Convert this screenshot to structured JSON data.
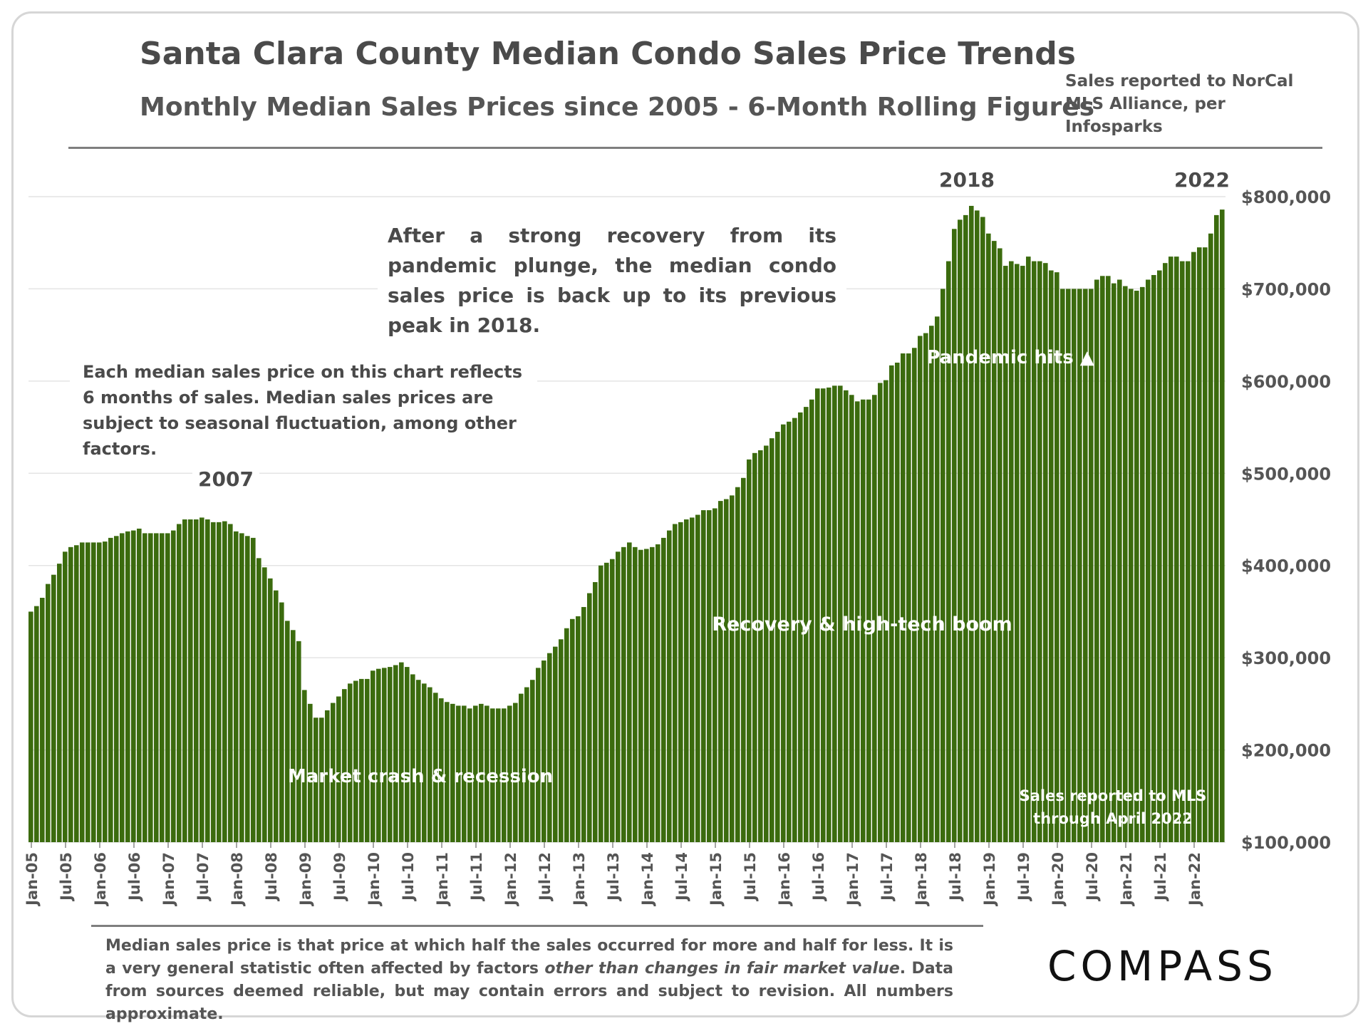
{
  "header": {
    "title": "Santa Clara County Median Condo Sales Price Trends",
    "subtitle": "Monthly Median Sales Prices since 2005 - 6-Month Rolling Figures",
    "source": "Sales reported to NorCal MLS Alliance, per Infosparks"
  },
  "annotations": {
    "main_note": "After a strong recovery from its pandemic plunge, the median condo sales price is back up to its previous peak in 2018.",
    "side_note": "Each median sales price on this chart reflects 6 months of sales. Median sales prices are subject to seasonal fluctuation, among other factors.",
    "year_2007": "2007",
    "year_2018": "2018",
    "year_2022": "2022",
    "crash": "Market crash & recession",
    "recovery": "Recovery & high-tech boom",
    "pandemic": "Pandemic hits ▲",
    "mls_note_line1": "Sales reported to MLS",
    "mls_note_line2": "through April 2022"
  },
  "footer": {
    "footnote_pre": "Median sales price is that price at which half the sales occurred for more and half for less. It is a very general statistic often affected by factors ",
    "footnote_em": "other than changes in fair market value",
    "footnote_post": ". Data from sources deemed reliable, but may contain errors and subject to revision. All numbers approximate.",
    "logo": "COMPASS"
  },
  "colors": {
    "bar": "#3b6b0e",
    "bar_edge": "#2e5409",
    "grid": "#e4e4e4"
  },
  "chart_data": {
    "type": "bar",
    "title": "Santa Clara County Median Condo Sales Price Trends",
    "xlabel": "",
    "ylabel": "",
    "ylim": [
      100000,
      800000
    ],
    "y_ticks": [
      100000,
      200000,
      300000,
      400000,
      500000,
      600000,
      700000,
      800000
    ],
    "y_tick_labels": [
      "$100,000",
      "$200,000",
      "$300,000",
      "$400,000",
      "$500,000",
      "$600,000",
      "$700,000",
      "$800,000"
    ],
    "x_tick_labels": [
      "Jan-05",
      "Jul-05",
      "Jan-06",
      "Jul-06",
      "Jan-07",
      "Jul-07",
      "Jan-08",
      "Jul-08",
      "Jan-09",
      "Jul-09",
      "Jan-10",
      "Jul-10",
      "Jan-11",
      "Jul-11",
      "Jan-12",
      "Jul-12",
      "Jan-13",
      "Jul-13",
      "Jan-14",
      "Jul-14",
      "Jan-15",
      "Jul-15",
      "Jan-16",
      "Jul-16",
      "Jan-17",
      "Jul-17",
      "Jan-18",
      "Jul-18",
      "Jan-19",
      "Jul-19",
      "Jan-20",
      "Jul-20",
      "Jan-21",
      "Jul-21",
      "Jan-22"
    ],
    "series": [
      {
        "name": "Median Condo Sales Price (6-month rolling)",
        "start": "Jan-05",
        "values": [
          350000,
          356000,
          365000,
          380000,
          390000,
          402000,
          415000,
          420000,
          422000,
          425000,
          425000,
          425000,
          425000,
          426000,
          430000,
          432000,
          435000,
          437000,
          438000,
          440000,
          435000,
          435000,
          435000,
          435000,
          435000,
          438000,
          445000,
          450000,
          450000,
          450000,
          452000,
          450000,
          447000,
          447000,
          448000,
          445000,
          437000,
          435000,
          432000,
          430000,
          408000,
          398000,
          386000,
          373000,
          360000,
          340000,
          330000,
          318000,
          265000,
          250000,
          235000,
          235000,
          243000,
          251000,
          258000,
          266000,
          272000,
          275000,
          277000,
          277000,
          286000,
          288000,
          289000,
          290000,
          292000,
          295000,
          290000,
          282000,
          276000,
          272000,
          268000,
          262000,
          256000,
          252000,
          250000,
          248000,
          248000,
          245000,
          248000,
          250000,
          248000,
          245000,
          245000,
          245000,
          248000,
          251000,
          261000,
          268000,
          276000,
          289000,
          297000,
          305000,
          312000,
          320000,
          332000,
          342000,
          345000,
          355000,
          370000,
          382000,
          400000,
          403000,
          407000,
          415000,
          420000,
          425000,
          420000,
          417000,
          418000,
          420000,
          423000,
          430000,
          438000,
          445000,
          447000,
          450000,
          452000,
          455000,
          460000,
          460000,
          462000,
          470000,
          472000,
          476000,
          485000,
          495000,
          515000,
          522000,
          525000,
          530000,
          538000,
          545000,
          553000,
          556000,
          560000,
          566000,
          572000,
          580000,
          592000,
          592000,
          593000,
          595000,
          595000,
          590000,
          585000,
          578000,
          580000,
          580000,
          585000,
          598000,
          601000,
          617000,
          620000,
          630000,
          630000,
          636000,
          649000,
          652000,
          660000,
          670000,
          700000,
          730000,
          765000,
          775000,
          780000,
          790000,
          785000,
          778000,
          760000,
          752000,
          744000,
          725000,
          730000,
          727000,
          725000,
          735000,
          730000,
          730000,
          728000,
          720000,
          718000,
          700000,
          700000,
          700000,
          700000,
          700000,
          700000,
          710000,
          714000,
          714000,
          706000,
          710000,
          703000,
          700000,
          698000,
          702000,
          710000,
          715000,
          720000,
          728000,
          735000,
          735000,
          730000,
          730000,
          740000,
          745000,
          745000,
          760000,
          780000,
          786000
        ]
      }
    ]
  }
}
